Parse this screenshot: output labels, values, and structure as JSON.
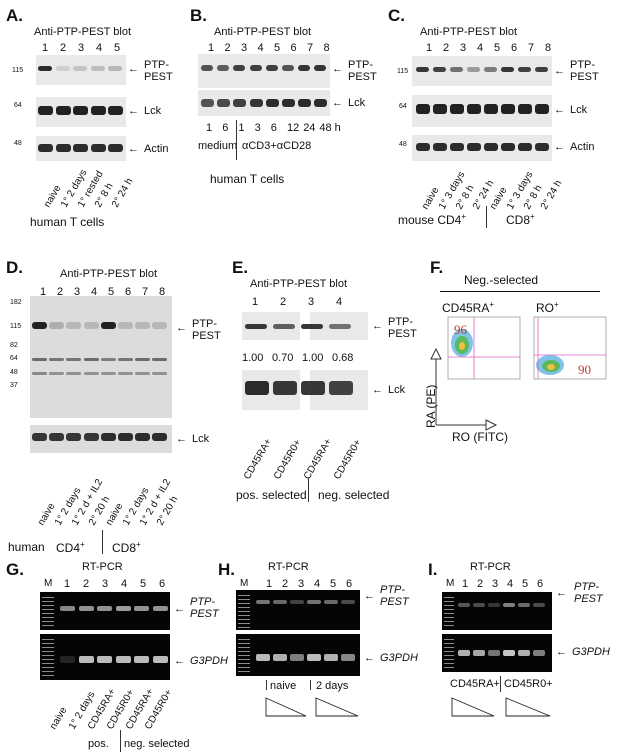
{
  "panel_labels": {
    "A": "A.",
    "B": "B.",
    "C": "C.",
    "D": "D.",
    "E": "E.",
    "F": "F.",
    "G": "G.",
    "H": "H.",
    "I": "I."
  },
  "blot_title": "Anti-PTP-PEST blot",
  "ptp_label_1": "PTP-",
  "ptp_label_2": "PEST",
  "lck": "Lck",
  "actin": "Actin",
  "g3pdh": "G3PDH",
  "rtpcr": "RT-PCR",
  "M": "M",
  "lanes_5": [
    "1",
    "2",
    "3",
    "4",
    "5"
  ],
  "lanes_6": [
    "1",
    "2",
    "3",
    "4",
    "5",
    "6"
  ],
  "lanes_8": [
    "1",
    "2",
    "3",
    "4",
    "5",
    "6",
    "7",
    "8"
  ],
  "lanes_4": [
    "1",
    "2",
    "3",
    "4"
  ],
  "panelA": {
    "mw": [
      "115",
      "64",
      "48"
    ],
    "conds": [
      "naive",
      "1° 2 days",
      "1° rested",
      "2° 8 h",
      "2° 24 h"
    ],
    "caption": "human T cells"
  },
  "panelB": {
    "times": [
      "1",
      "6",
      "1",
      "3",
      "6",
      "12",
      "24",
      "48 h"
    ],
    "medium": "medium",
    "stim": "αCD3+αCD28",
    "caption": "human T cells"
  },
  "panelC": {
    "mw": [
      "115",
      "64",
      "48"
    ],
    "conds": [
      "naive",
      "1° 3 days",
      "2° 8 h",
      "2° 24 h",
      "naive",
      "1° 3 days",
      "2° 8 h",
      "2° 24 h"
    ],
    "cd4": "mouse CD4",
    "cd8": "CD8",
    "sup": "+"
  },
  "panelD": {
    "mw": [
      "182",
      "115",
      "82",
      "64",
      "48",
      "37"
    ],
    "conds": [
      "naive",
      "1° 2 days",
      "1° 2 d + IL2",
      "2° 20 h",
      "naive",
      "1° 2 days",
      "1° 2 d + IL2",
      "2° 20 h"
    ],
    "human": "human",
    "cd4": "CD4",
    "cd8": "CD8",
    "sup": "+"
  },
  "panelE": {
    "ratios": [
      "1.00",
      "0.70",
      "1.00",
      "0.68"
    ],
    "conds": [
      "CD45RA+",
      "CD45R0+",
      "CD45RA+",
      "CD45R0+"
    ],
    "pos": "pos. selected",
    "neg": "neg. selected"
  },
  "panelF": {
    "title": "Neg.-selected",
    "cd45ra": "CD45RA",
    "ro": "RO",
    "sup": "+",
    "pct_left": "96",
    "pct_right": "90",
    "ylab": "RA (PE)",
    "xlab": "RO (FITC)"
  },
  "panelG": {
    "conds": [
      "naive",
      "1° 2 days",
      "CD45RA+",
      "CD45R0+",
      "CD45RA+",
      "CD45R0+"
    ],
    "pos": "pos.",
    "neg": "neg. selected"
  },
  "panelH": {
    "naive": "naive",
    "days": "2 days"
  },
  "panelI": {
    "ra": "CD45RA+",
    "r0": "CD45R0+"
  }
}
